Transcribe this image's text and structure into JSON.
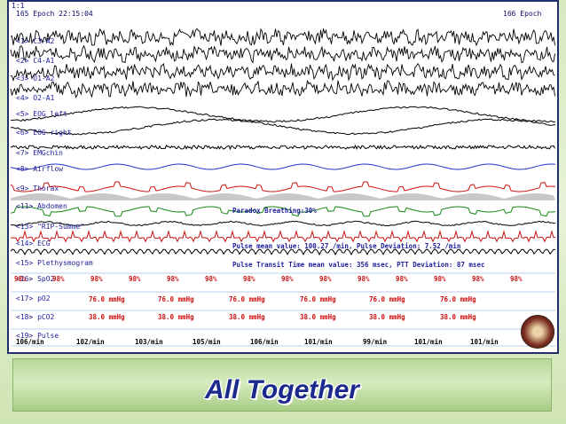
{
  "header": {
    "page_indicator": "1:1",
    "epoch_left": "165 Epoch  22:15:04",
    "epoch_right": "166 Epoch"
  },
  "channels": [
    {
      "label": "<1> C3-A2",
      "color": "#000000"
    },
    {
      "label": "<2> C4-A1",
      "color": "#000000"
    },
    {
      "label": "<3> O1-A2",
      "color": "#000000"
    },
    {
      "label": "<4> O2-A1",
      "color": "#000000"
    },
    {
      "label": "<5> EOG left",
      "color": "#000000"
    },
    {
      "label": "<6> EOG right",
      "color": "#000000"
    },
    {
      "label": "<7> EMGchin",
      "color": "#000000"
    },
    {
      "label": "<8> Airflow",
      "color": "#2233cc"
    },
    {
      "label": "<9> Thorax",
      "color": "#cc1111"
    },
    {
      "label": "<11> Abdomen",
      "color": "#118811"
    },
    {
      "label": "<13> \"RIP-Summe\"",
      "color": "#000000"
    },
    {
      "label": "<14> ECG",
      "color": "#cc1111"
    },
    {
      "label": "<15> Plethysmogram",
      "color": "#000000"
    },
    {
      "label": "<16> SpO2",
      "color": "#cc1111"
    },
    {
      "label": "<17> pO2",
      "color": "#cc1111"
    },
    {
      "label": "<18> pCO2",
      "color": "#cc1111"
    },
    {
      "label": "<19> Pulse",
      "color": "#000000"
    }
  ],
  "annotations": {
    "paradox": "Paradox Breathing:30%",
    "pulse_mean": "Pulse mean value: 100.27 /min, Pulse Deviation:  7.52 /min",
    "ptt": "Pulse Transit Time mean value: 356 msec, PTT Deviation: 87 msec"
  },
  "spo2_values": [
    "98%",
    "98%",
    "98%",
    "98%",
    "98%",
    "98%",
    "98%",
    "98%",
    "98%",
    "98%",
    "98%",
    "98%",
    "98%",
    "98%"
  ],
  "po2_values": [
    "76.0 mmHg",
    "76.0 mmHg",
    "76.0 mmHg",
    "76.0 mmHg",
    "76.0 mmHg",
    "76.0 mmHg"
  ],
  "pco2_values": [
    "38.0 mmHg",
    "38.0 mmHg",
    "38.0 mmHg",
    "38.0 mmHg",
    "38.0 mmHg",
    "38.0 mmHg"
  ],
  "pulse_values": [
    "106/min",
    "102/min",
    "103/min",
    "105/min",
    "106/min",
    "101/min",
    "99/min",
    "101/min",
    "101/min"
  ],
  "caption": "All  Together"
}
